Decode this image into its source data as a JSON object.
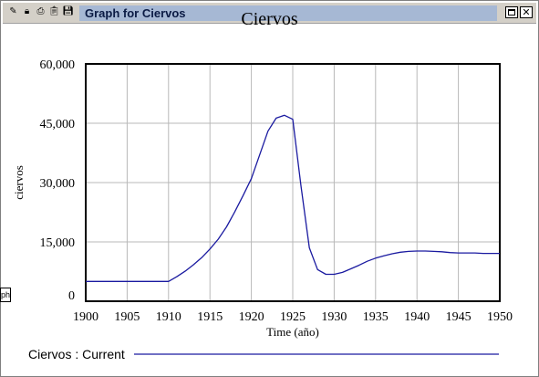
{
  "window": {
    "title": "Graph for Ciervos",
    "toolbar_icons": [
      "sketch-icon",
      "lock-icon",
      "print-icon",
      "clipboard-icon",
      "save-icon"
    ],
    "side_tab_label": "ph",
    "title_active_color": "#a6b8d4"
  },
  "chart_data": {
    "type": "line",
    "title": "Ciervos",
    "xlabel": "Time (año)",
    "ylabel": "ciervos",
    "xlim": [
      1900,
      1950
    ],
    "ylim": [
      0,
      60000
    ],
    "x_ticks": [
      1900,
      1905,
      1910,
      1915,
      1920,
      1925,
      1930,
      1935,
      1940,
      1945,
      1950
    ],
    "x_tick_labels": [
      "1900",
      "1905",
      "1910",
      "1915",
      "1920",
      "1925",
      "1930",
      "1935",
      "1940",
      "1945",
      "1950"
    ],
    "y_ticks": [
      0,
      15000,
      30000,
      45000,
      60000
    ],
    "y_tick_labels": [
      "0",
      "15,000",
      "30,000",
      "45,000",
      "60,000"
    ],
    "grid": true,
    "legend_position": "bottom",
    "series": [
      {
        "name": "Ciervos : Current",
        "color": "#1a1aa0",
        "x": [
          1900,
          1902,
          1904,
          1906,
          1908,
          1910,
          1911,
          1912,
          1913,
          1914,
          1915,
          1916,
          1917,
          1918,
          1919,
          1920,
          1921,
          1922,
          1923,
          1924,
          1925,
          1926,
          1927,
          1928,
          1929,
          1930,
          1931,
          1932,
          1933,
          1934,
          1935,
          1936,
          1937,
          1938,
          1939,
          1940,
          1941,
          1942,
          1943,
          1944,
          1945,
          1946,
          1947,
          1948,
          1950
        ],
        "values": [
          5000,
          5000,
          5000,
          5000,
          5000,
          5000,
          6200,
          7600,
          9200,
          11000,
          13200,
          15700,
          18800,
          22600,
          26700,
          31000,
          37000,
          43000,
          46300,
          47000,
          46000,
          29000,
          13500,
          8000,
          6800,
          6800,
          7300,
          8200,
          9100,
          10100,
          10900,
          11500,
          12000,
          12400,
          12600,
          12700,
          12700,
          12600,
          12500,
          12300,
          12200,
          12200,
          12200,
          12100,
          12100
        ]
      }
    ]
  }
}
